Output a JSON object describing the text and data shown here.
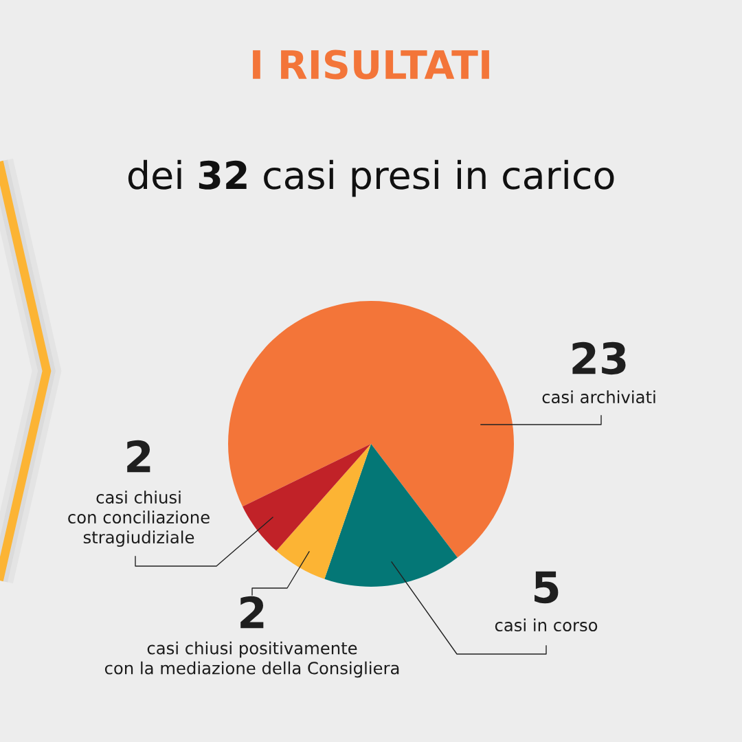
{
  "chart_data": {
    "type": "pie",
    "title": "I RISULTATI",
    "subtitle": "dei 32 casi presi in carico",
    "categories": [
      "casi archiviati",
      "casi in corso",
      "casi chiusi positivamente\ncon la mediazione della Consigliera",
      "casi chiusi\ncon conciliazione\nstragiudiziale"
    ],
    "values": [
      23,
      5,
      2,
      2
    ],
    "colors": [
      "#f37539",
      "#047776",
      "#fcb434",
      "#c12228"
    ],
    "data_labels": true
  }
}
